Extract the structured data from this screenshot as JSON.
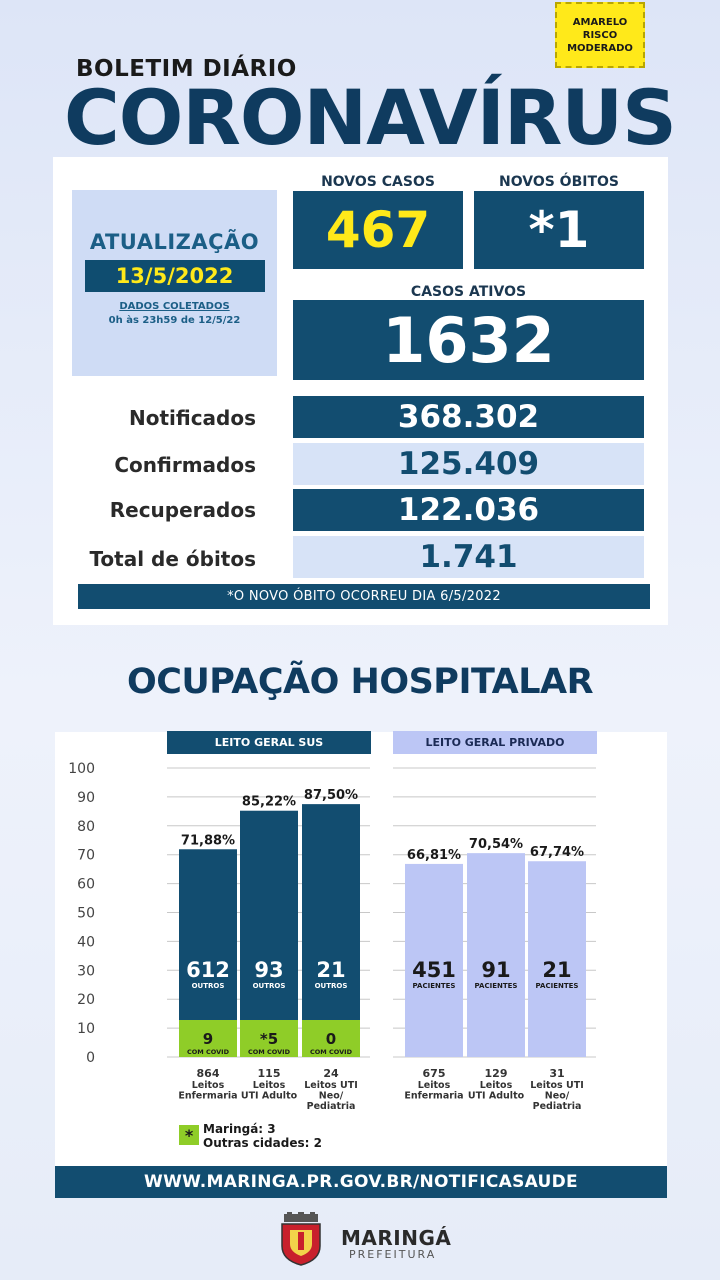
{
  "risk_badge": [
    "AMARELO",
    "RISCO",
    "MODERADO"
  ],
  "header": {
    "subtitle": "BOLETIM DIÁRIO",
    "title": "CORONAVÍRUS"
  },
  "update": {
    "label": "ATUALIZAÇÃO",
    "date": "13/5/2022",
    "collected_label": "DADOS COLETADOS",
    "collected_period": "0h às 23h59 de 12/5/22"
  },
  "stats": {
    "new_cases_label": "NOVOS CASOS",
    "new_cases": "467",
    "new_deaths_label": "NOVOS ÓBITOS",
    "new_deaths": "*1",
    "active_label": "CASOS ATIVOS",
    "active": "1632"
  },
  "summary": [
    {
      "label": "Notificados",
      "value": "368.302"
    },
    {
      "label": "Confirmados",
      "value": "125.409"
    },
    {
      "label": "Recuperados",
      "value": "122.036"
    },
    {
      "label": "Total de óbitos",
      "value": "1.741"
    }
  ],
  "note": "*O NOVO ÓBITO OCORREU DIA 6/5/2022",
  "hospital": {
    "title": "OCUPAÇÃO HOSPITALAR",
    "sus_header": "LEITO GERAL SUS",
    "private_header": "LEITO GERAL PRIVADO",
    "legend_symbol": "*",
    "legend_lines": [
      "Maringá: 3",
      "Outras cidades: 2"
    ]
  },
  "chart_data": {
    "type": "bar",
    "ylim": [
      0,
      100
    ],
    "yticks": [
      0,
      10,
      20,
      30,
      40,
      50,
      60,
      70,
      80,
      90,
      100
    ],
    "colors": {
      "sus_dark": "#124d70",
      "covid_green": "#8fcd28",
      "private": "#bcc6f5",
      "grid": "#c8c8c8"
    },
    "groups": [
      {
        "name": "LEITO GERAL SUS",
        "bars": [
          {
            "percent_label": "71,88%",
            "value": 71.88,
            "covid_label": "9",
            "others_label": "612",
            "others_caption": "OUTROS",
            "covid_caption": "COM COVID",
            "total": "864",
            "desc": [
              "Leitos",
              "Enfermaria"
            ]
          },
          {
            "percent_label": "85,22%",
            "value": 85.22,
            "covid_label": "*5",
            "others_label": "93",
            "others_caption": "OUTROS",
            "covid_caption": "COM COVID",
            "total": "115",
            "desc": [
              "Leitos",
              "UTI Adulto"
            ]
          },
          {
            "percent_label": "87,50%",
            "value": 87.5,
            "covid_label": "0",
            "others_label": "21",
            "others_caption": "OUTROS",
            "covid_caption": "COM COVID",
            "total": "24",
            "desc": [
              "Leitos UTI",
              "Neo/",
              "Pediatria"
            ]
          }
        ]
      },
      {
        "name": "LEITO GERAL PRIVADO",
        "bars": [
          {
            "percent_label": "66,81%",
            "value": 66.81,
            "patients_label": "451",
            "patients_caption": "PACIENTES",
            "total": "675",
            "desc": [
              "Leitos",
              "Enfermaria"
            ]
          },
          {
            "percent_label": "70,54%",
            "value": 70.54,
            "patients_label": "91",
            "patients_caption": "PACIENTES",
            "total": "129",
            "desc": [
              "Leitos",
              "UTI Adulto"
            ]
          },
          {
            "percent_label": "67,74%",
            "value": 67.74,
            "patients_label": "21",
            "patients_caption": "PACIENTES",
            "total": "31",
            "desc": [
              "Leitos UTI",
              "Neo/",
              "Pediatria"
            ]
          }
        ]
      }
    ]
  },
  "footer": {
    "url": "WWW.MARINGA.PR.GOV.BR/NOTIFICASAUDE",
    "logo_icon": "city-coat-of-arms-icon",
    "name": "MARINGÁ",
    "sub": "PREFEITURA"
  }
}
